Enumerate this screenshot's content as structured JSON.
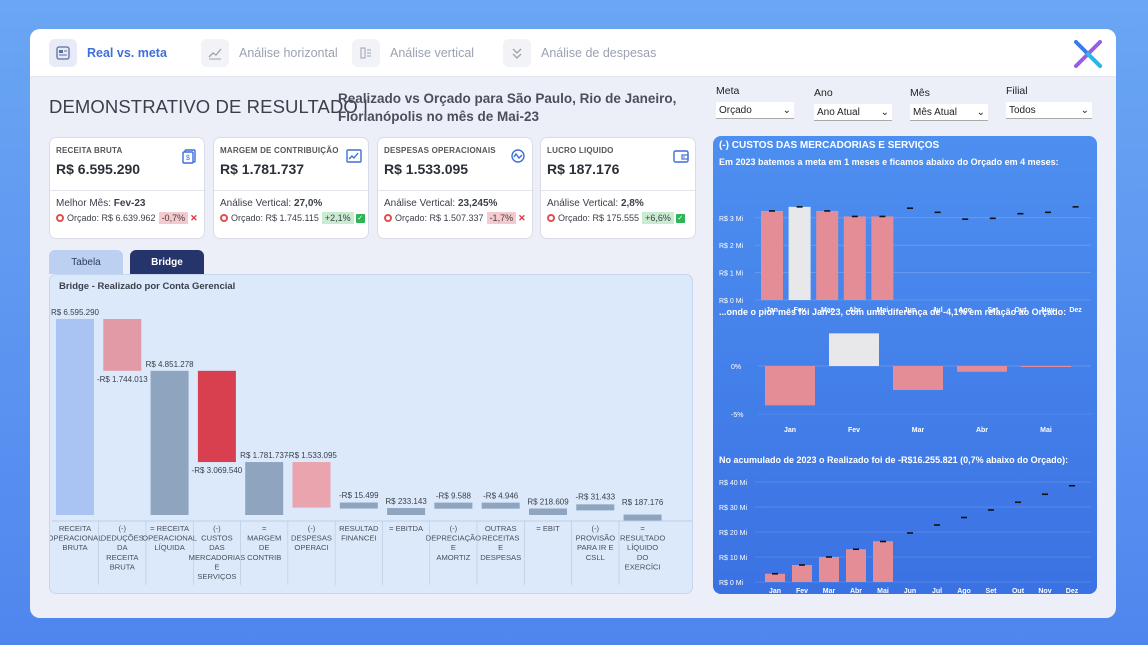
{
  "nav": [
    {
      "label": "Real vs. meta",
      "icon": "report-icon",
      "active": true
    },
    {
      "label": "Análise horizontal",
      "icon": "trend-icon",
      "active": false
    },
    {
      "label": "Análise vertical",
      "icon": "columns-icon",
      "active": false
    },
    {
      "label": "Análise de despesas",
      "icon": "chevron-icon",
      "active": false
    }
  ],
  "header": {
    "title": "DEMONSTRATIVO DE RESULTADO |",
    "subtitle_line1": "Realizado vs Orçado para São Paulo, Rio de Janeiro,",
    "subtitle_line2": "Florianópolis no mês de Mai-23"
  },
  "filters": [
    {
      "label": "Meta",
      "value": "Orçado"
    },
    {
      "label": "Ano",
      "value": "Ano Atual"
    },
    {
      "label": "Mês",
      "value": "Mês Atual"
    },
    {
      "label": "Filial",
      "value": "Todos"
    }
  ],
  "kpis": [
    {
      "label": "RECEITA BRUTA",
      "value": "R$ 6.595.290",
      "line1_label": "Melhor Mês: ",
      "line1_value": "Fev-23",
      "orcado": "Orçado: R$ 6.639.962",
      "delta": "-0,7%",
      "positive": false,
      "icon": "money-icon"
    },
    {
      "label": "MARGEM DE CONTRIBUIÇÃO",
      "value": "R$ 1.781.737",
      "line1_label": "Análise Vertical: ",
      "line1_value": "27,0%",
      "orcado": "Orçado: R$ 1.745.115",
      "delta": "+2,1%",
      "positive": true,
      "icon": "chart-up-icon"
    },
    {
      "label": "DESPESAS OPERACIONAIS",
      "value": "R$ 1.533.095",
      "line1_label": "Análise Vertical: ",
      "line1_value": "23,245%",
      "orcado": "Orçado: R$ 1.507.337",
      "delta": "-1,7%",
      "positive": false,
      "icon": "cycle-icon"
    },
    {
      "label": "LUCRO LIQUIDO",
      "value": "R$ 187.176",
      "line1_label": "Análise Vertical: ",
      "line1_value": "2,8%",
      "orcado": "Orçado: R$ 175.555",
      "delta": "+6,6%",
      "positive": true,
      "icon": "wallet-icon"
    }
  ],
  "tabs": {
    "tabela": "Tabela",
    "bridge": "Bridge"
  },
  "chart_data": [
    {
      "type": "bar",
      "title": "Bridge - Realizado por Conta Gerencial",
      "categories": [
        "RECEITA OPERACIONAL BRUTA",
        "(-) DEDUÇÕES DA RECEITA BRUTA",
        "= RECEITA OPERACIONAL LÍQUIDA",
        "(-) CUSTOS DAS MERCADORIAS E SERVIÇOS",
        "= MARGEM DE CONTRIB",
        "(-) DESPESAS OPERACI",
        "RESULTAD FINANCEI",
        "= EBITDA",
        "(-) DEPRECIAÇÃO E AMORTIZ",
        "OUTRAS RECEITAS E DESPESAS",
        "= EBIT",
        "(-) PROVISÃO PARA IR E CSLL",
        "= RESULTADO LÍQUIDO DO EXERCÍCI"
      ],
      "category_lines": [
        [
          "RECEITA",
          "OPERACIONAL",
          "BRUTA"
        ],
        [
          "(-)",
          "DEDUÇÕES",
          "DA",
          "RECEITA",
          "BRUTA"
        ],
        [
          "= RECEITA",
          "OPERACIONAL",
          "LÍQUIDA"
        ],
        [
          "(-)",
          "CUSTOS",
          "DAS",
          "MERCADORIAS",
          "E",
          "SERVIÇOS"
        ],
        [
          "=",
          "MARGEM",
          "DE",
          "CONTRIB"
        ],
        [
          "(-)",
          "DESPESAS",
          "OPERACI"
        ],
        [
          "RESULTAD",
          "FINANCEI"
        ],
        [
          "= EBITDA"
        ],
        [
          "(-)",
          "DEPRECIAÇÃO",
          "E",
          "AMORTIZ"
        ],
        [
          "OUTRAS",
          "RECEITAS",
          "E",
          "DESPESAS"
        ],
        [
          "= EBIT"
        ],
        [
          "(-)",
          "PROVISÃO",
          "PARA IR E",
          "CSLL"
        ],
        [
          "=",
          "RESULTADO",
          "LÍQUIDO",
          "DO",
          "EXERCÍCI"
        ]
      ],
      "values": [
        6595290,
        -1744013,
        4851278,
        -3069540,
        1781737,
        -1533095,
        -15499,
        233143,
        -9588,
        -4946,
        218609,
        -31433,
        187176
      ],
      "data_labels": [
        "R$ 6.595.290",
        "-R$ 1.744.013",
        "R$ 4.851.278",
        "-R$ 3.069.540",
        "R$ 1.781.737",
        "-R$ 1.533.095",
        "-R$ 15.499",
        "R$ 233.143",
        "-R$ 9.588",
        "-R$ 4.946",
        "R$ 218.609",
        "-R$ 31.433",
        "R$ 187.176"
      ],
      "colors": [
        "#a9c3f2",
        "#e39aa7",
        "#8fa4bf",
        "#d9404f",
        "#8fa4bf",
        "#e9a4ae",
        "#8fa4bf",
        "#8fa4bf",
        "#8fa4bf",
        "#8fa4bf",
        "#8fa4bf",
        "#8fa4bf",
        "#8fa4bf"
      ]
    },
    {
      "type": "bar",
      "title": "(-) CUSTOS DAS MERCADORIAS E SERVIÇOS",
      "subtitle": "Em 2023 batemos a meta em 1 meses e ficamos abaixo do Orçado em 4 meses:",
      "categories": [
        "Jan",
        "Fev",
        "Mar",
        "Abr",
        "Mai",
        "Jun",
        "Jul",
        "Ago",
        "Set",
        "Out",
        "Nov",
        "Dez"
      ],
      "series": [
        {
          "name": "Realizado",
          "values": [
            3.25,
            3.4,
            3.25,
            3.05,
            3.05,
            null,
            null,
            null,
            null,
            null,
            null,
            null
          ]
        },
        {
          "name": "Orçado",
          "values": [
            3.25,
            3.4,
            3.25,
            3.05,
            3.05,
            3.35,
            3.2,
            2.95,
            2.98,
            3.15,
            3.2,
            3.4
          ]
        }
      ],
      "highlight": [
        false,
        true,
        false,
        false,
        false
      ],
      "yticks": [
        "R$ 0 Mi",
        "R$ 1 Mi",
        "R$ 2 Mi",
        "R$ 3 Mi"
      ],
      "ylim": [
        0,
        3.7
      ]
    },
    {
      "type": "bar",
      "subtitle": "...onde o pior mês foi Jan-23, com uma diferença de -4,1% em relação ao Orçado:",
      "categories": [
        "Jan",
        "Fev",
        "Mar",
        "Abr",
        "Mai"
      ],
      "values": [
        -4.1,
        3.4,
        -2.5,
        -0.6,
        -0.05
      ],
      "yticks": [
        "0%",
        "-5%"
      ],
      "ylim": [
        -5,
        4
      ]
    },
    {
      "type": "bar",
      "subtitle": "No acumulado de 2023 o Realizado foi de -R$16.255.821 (0,7% abaixo do Orçado):",
      "categories": [
        "Jan",
        "Fev",
        "Mar",
        "Abr",
        "Mai",
        "Jun",
        "Jul",
        "Ago",
        "Set",
        "Out",
        "Nov",
        "Dez"
      ],
      "series": [
        {
          "name": "Realizado",
          "values": [
            3.3,
            6.8,
            10.0,
            13.1,
            16.3,
            null,
            null,
            null,
            null,
            null,
            null,
            null
          ]
        },
        {
          "name": "Orçado",
          "values": [
            3.3,
            6.8,
            10.0,
            13.1,
            16.2,
            19.6,
            22.8,
            25.8,
            28.8,
            31.9,
            35.1,
            38.5
          ]
        }
      ],
      "yticks": [
        "R$ 0 Mi",
        "R$ 10 Mi",
        "R$ 20 Mi",
        "R$ 30 Mi",
        "R$ 40 Mi"
      ],
      "ylim": [
        0,
        40
      ]
    }
  ]
}
